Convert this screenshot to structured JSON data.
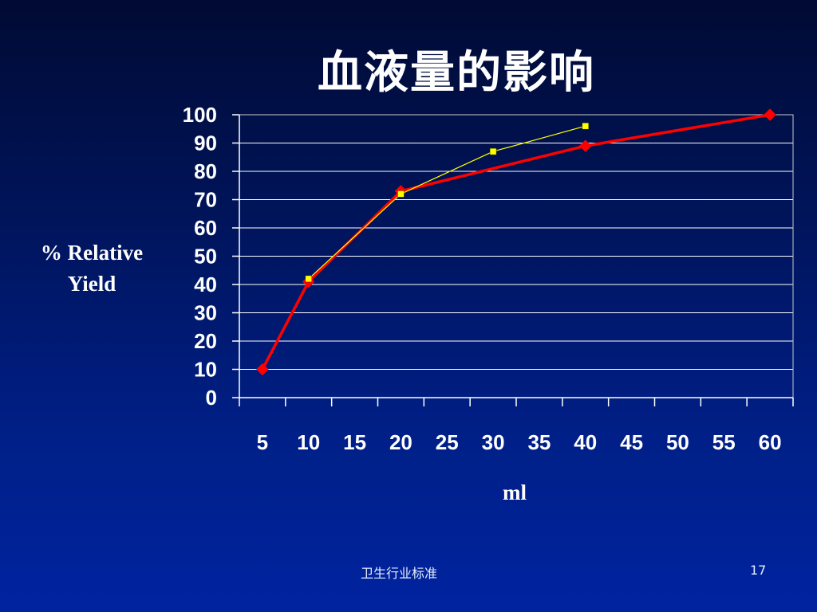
{
  "slide": {
    "title": "血液量的影响",
    "footer_left": "卫生行业标准",
    "page_number": "17"
  },
  "chart_data": {
    "type": "line",
    "xlabel": "ml",
    "ylabel": "% Relative Yield",
    "ylabel_lines": [
      "% Relative",
      "Yield"
    ],
    "x_ticks": [
      "5",
      "10",
      "15",
      "20",
      "25",
      "30",
      "35",
      "40",
      "45",
      "50",
      "55",
      "60"
    ],
    "ylim": [
      0,
      100
    ],
    "y_ticks": [
      0,
      10,
      20,
      30,
      40,
      50,
      60,
      70,
      80,
      90,
      100
    ],
    "grid": true,
    "legend": "none",
    "series": [
      {
        "color": "#ff0000",
        "marker": "diamond",
        "points": [
          [
            5,
            10
          ],
          [
            10,
            41
          ],
          [
            20,
            73
          ],
          [
            40,
            89
          ],
          [
            60,
            100
          ]
        ]
      },
      {
        "color": "#ffff00",
        "marker": "square",
        "points": [
          [
            10,
            42
          ],
          [
            20,
            72
          ],
          [
            30,
            87
          ],
          [
            40,
            96
          ]
        ]
      }
    ]
  }
}
